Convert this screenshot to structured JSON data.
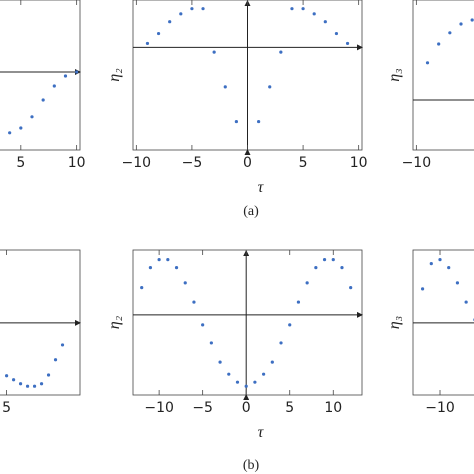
{
  "chart_data": [
    {
      "type": "scatter",
      "color": "#3d6fc2",
      "x": [
        4,
        5,
        6,
        7,
        8,
        9,
        10
      ],
      "values": [
        -1.52,
        -1.4,
        -1.12,
        -0.7,
        -0.35,
        -0.1,
        0.0
      ],
      "xlim": [
        -10.3,
        10.3
      ],
      "ylim": [
        -1.95,
        1.8
      ],
      "xticks": [
        5,
        10
      ]
    },
    {
      "type": "scatter",
      "color": "#3d6fc2",
      "x_label": "τ",
      "y_label": "η₂",
      "x": [
        -9,
        -8,
        -7,
        -6,
        -5,
        -4,
        -3,
        -2,
        -1,
        1,
        2,
        3,
        4,
        5,
        6,
        7,
        8,
        9
      ],
      "values": [
        0.1,
        0.35,
        0.65,
        0.85,
        0.98,
        0.98,
        -0.12,
        -1.0,
        -1.88,
        -1.88,
        -1.0,
        -0.12,
        0.98,
        0.98,
        0.85,
        0.65,
        0.35,
        0.1
      ],
      "xlim": [
        -10.3,
        10.3
      ],
      "ylim": [
        -2.6,
        1.2
      ],
      "xticks": [
        {
          "value": -10,
          "label": "−10"
        },
        {
          "value": -5,
          "label": "−5"
        },
        0,
        5,
        10
      ]
    },
    {
      "type": "scatter",
      "color": "#3d6fc2",
      "y_label": "η₃",
      "x": [
        -9,
        -8,
        -7,
        -6,
        -5
      ],
      "values": [
        0.93,
        1.4,
        1.68,
        1.9,
        2.0
      ],
      "xlim": [
        -10.3,
        10.3
      ],
      "ylim": [
        -1.25,
        2.5
      ],
      "xticks": [
        {
          "value": -10,
          "label": "−10"
        }
      ]
    },
    {
      "type": "scatter",
      "color": "#3d6fc2",
      "x": [
        5,
        6,
        7,
        8,
        9,
        10,
        11,
        12,
        13
      ],
      "values": [
        -1.32,
        -1.42,
        -1.52,
        -1.58,
        -1.58,
        -1.52,
        -1.3,
        -0.92,
        -0.55
      ],
      "xlim": [
        -17.4,
        15.5
      ],
      "ylim": [
        -1.8,
        1.82
      ],
      "xticks": [
        5
      ]
    },
    {
      "type": "scatter",
      "color": "#3d6fc2",
      "x_label": "τ",
      "y_label": "η₂",
      "x": [
        -12,
        -11,
        -10,
        -9,
        -8,
        -7,
        -6,
        -5,
        -4,
        -3,
        -2,
        -1,
        0,
        1,
        2,
        3,
        4,
        5,
        6,
        7,
        8,
        9,
        10,
        11,
        12
      ],
      "values": [
        0.68,
        1.18,
        1.38,
        1.38,
        1.18,
        0.8,
        0.32,
        -0.25,
        -0.7,
        -1.18,
        -1.48,
        -1.68,
        -1.78,
        -1.68,
        -1.48,
        -1.18,
        -0.7,
        -0.25,
        0.32,
        0.8,
        1.18,
        1.38,
        1.38,
        1.18,
        0.68
      ],
      "xlim": [
        -13,
        13.3
      ],
      "ylim": [
        -2.0,
        1.62
      ],
      "xticks": [
        {
          "value": -10,
          "label": "−10"
        },
        {
          "value": -5,
          "label": "−5"
        },
        0,
        5,
        10
      ]
    },
    {
      "type": "scatter",
      "color": "#3d6fc2",
      "y_label": "η₃",
      "x": [
        -12,
        -11,
        -10,
        -9,
        -8,
        -7,
        -6
      ],
      "values": [
        0.85,
        1.48,
        1.58,
        1.38,
        1.0,
        0.52,
        0.08
      ],
      "xlim": [
        -13.1,
        13.3
      ],
      "ylim": [
        -1.8,
        1.82
      ],
      "xticks": [
        {
          "value": -10,
          "label": "−10"
        }
      ]
    }
  ],
  "captions": [
    "(a)",
    "(b)"
  ]
}
